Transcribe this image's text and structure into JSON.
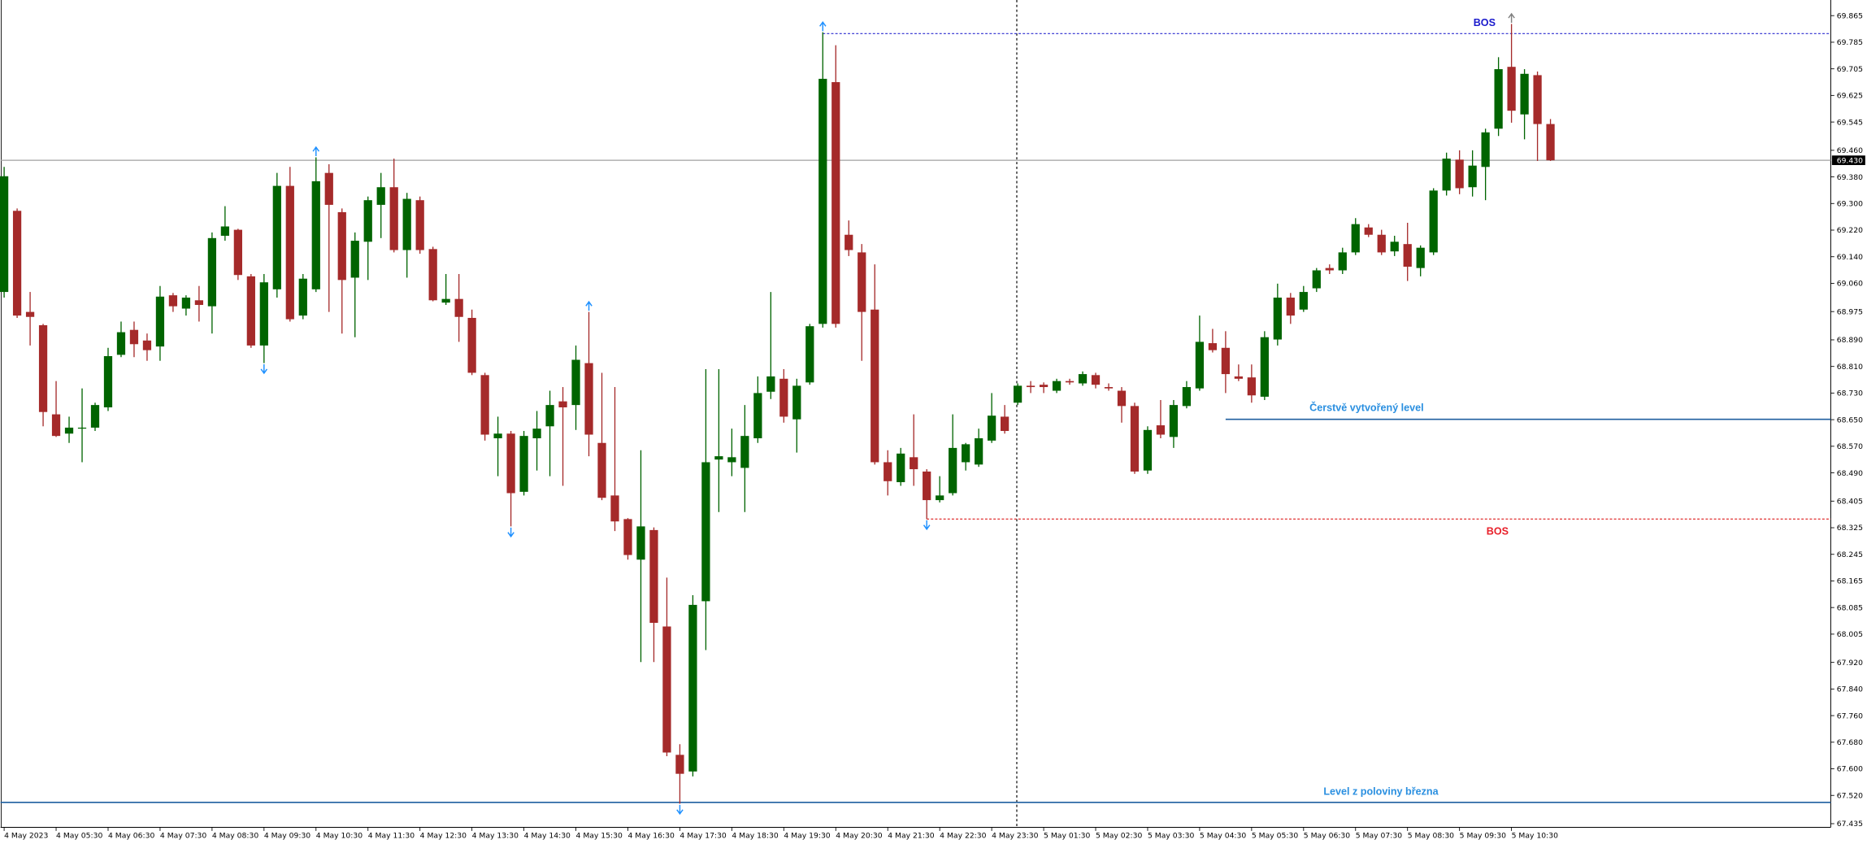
{
  "chart_data": {
    "type": "candlestick",
    "categories": [
      "4 May 2023",
      null,
      null,
      null,
      "4 May 05:30",
      null,
      null,
      null,
      "4 May 06:30",
      null,
      null,
      null,
      "4 May 07:30",
      null,
      null,
      null,
      "4 May 08:30",
      null,
      null,
      null,
      "4 May 09:30",
      null,
      null,
      null,
      "4 May 10:30",
      null,
      null,
      null,
      "4 May 11:30",
      null,
      null,
      null,
      "4 May 12:30",
      null,
      null,
      null,
      "4 May 13:30",
      null,
      null,
      null,
      "4 May 14:30",
      null,
      null,
      null,
      "4 May 15:30",
      null,
      null,
      null,
      "4 May 16:30",
      null,
      null,
      null,
      "4 May 17:30",
      null,
      null,
      null,
      "4 May 18:30",
      null,
      null,
      null,
      "4 May 19:30",
      null,
      null,
      null,
      "4 May 20:30",
      null,
      null,
      null,
      "4 May 21:30",
      null,
      null,
      null,
      "4 May 22:30",
      null,
      null,
      null,
      "4 May 23:30",
      null,
      null,
      null,
      "5 May 01:30",
      null,
      null,
      null,
      "5 May 02:30",
      null,
      null,
      null,
      "5 May 03:30",
      null,
      null,
      null,
      "5 May 04:30",
      null,
      null,
      null,
      "5 May 05:30",
      null,
      null,
      null,
      "5 May 06:30",
      null,
      null,
      null,
      "5 May 07:30",
      null,
      null,
      null,
      "5 May 08:30",
      null,
      null,
      null,
      "5 May 09:30",
      null,
      null,
      null,
      "5 May 10:30",
      null,
      null,
      null
    ],
    "open": [
      69.034,
      69.278,
      68.974,
      68.934,
      68.666,
      68.608,
      68.623,
      68.626,
      68.687,
      68.845,
      68.92,
      68.888,
      68.87,
      69.024,
      68.984,
      69.009,
      68.991,
      69.203,
      69.221,
      69.081,
      68.873,
      69.042,
      69.353,
      68.963,
      69.042,
      69.392,
      69.274,
      69.077,
      69.185,
      69.296,
      69.349,
      69.16,
      69.31,
      69.163,
      69.002,
      69.013,
      68.956,
      68.784,
      68.594,
      68.608,
      68.433,
      68.594,
      68.63,
      68.705,
      68.694,
      68.82,
      68.58,
      68.422,
      68.351,
      68.229,
      68.318,
      68.028,
      67.642,
      67.592,
      68.104,
      68.53,
      68.522,
      68.505,
      68.594,
      68.734,
      68.773,
      68.651,
      68.762,
      68.938,
      69.665,
      69.206,
      69.153,
      68.981,
      68.522,
      68.462,
      68.537,
      68.494,
      68.408,
      68.429,
      68.522,
      68.515,
      68.587,
      68.659,
      68.701,
      68.752,
      68.755,
      68.737,
      68.766,
      68.759,
      68.784,
      68.748,
      68.737,
      68.691,
      68.497,
      68.633,
      68.598,
      68.691,
      68.744,
      68.88,
      68.866,
      68.78,
      68.777,
      68.719,
      68.891,
      69.017,
      68.981,
      69.045,
      69.106,
      69.099,
      69.153,
      69.228,
      69.206,
      69.156,
      69.178,
      69.106,
      69.153,
      69.339,
      69.432,
      69.349,
      69.41,
      69.525,
      69.711,
      69.568,
      69.686,
      69.539
    ],
    "high": [
      69.41,
      69.285,
      69.034,
      68.938,
      68.766,
      68.659,
      68.744,
      68.701,
      68.866,
      68.945,
      68.945,
      68.909,
      69.052,
      69.031,
      69.024,
      69.052,
      69.213,
      69.292,
      69.224,
      69.088,
      69.088,
      69.392,
      69.41,
      69.088,
      69.439,
      69.418,
      69.285,
      69.213,
      69.321,
      69.392,
      69.435,
      69.332,
      69.321,
      69.17,
      69.088,
      69.088,
      68.981,
      68.791,
      68.659,
      68.616,
      68.616,
      68.676,
      68.737,
      68.748,
      68.873,
      68.974,
      68.791,
      68.748,
      68.354,
      68.558,
      68.326,
      68.175,
      67.674,
      68.122,
      68.802,
      68.802,
      68.623,
      68.694,
      68.78,
      69.034,
      68.802,
      68.773,
      68.938,
      69.815,
      69.776,
      69.249,
      69.178,
      69.117,
      68.558,
      68.565,
      68.666,
      68.501,
      68.48,
      68.666,
      68.58,
      68.623,
      68.73,
      68.694,
      68.759,
      68.766,
      68.762,
      68.773,
      68.773,
      68.795,
      68.791,
      68.759,
      68.748,
      68.701,
      68.63,
      68.709,
      68.709,
      68.766,
      68.963,
      68.923,
      68.916,
      68.816,
      68.816,
      68.916,
      69.059,
      69.031,
      69.052,
      69.106,
      69.117,
      69.167,
      69.256,
      69.238,
      69.221,
      69.203,
      69.242,
      69.174,
      69.346,
      69.453,
      69.46,
      69.46,
      69.525,
      69.74,
      69.84,
      69.704,
      69.697,
      69.554
    ],
    "low": [
      69.017,
      68.956,
      68.873,
      68.63,
      68.598,
      68.58,
      68.522,
      68.616,
      68.676,
      68.838,
      68.838,
      68.827,
      68.827,
      68.974,
      68.963,
      68.945,
      68.909,
      69.188,
      69.07,
      68.866,
      68.82,
      69.017,
      68.945,
      68.952,
      69.034,
      68.974,
      68.909,
      68.898,
      69.07,
      69.196,
      69.153,
      69.077,
      69.149,
      69.006,
      68.995,
      68.884,
      68.784,
      68.587,
      68.48,
      68.329,
      68.422,
      68.497,
      68.48,
      68.451,
      68.619,
      68.54,
      68.408,
      68.315,
      68.229,
      67.921,
      67.921,
      67.638,
      67.495,
      67.577,
      67.957,
      68.372,
      68.48,
      68.372,
      68.58,
      68.712,
      68.641,
      68.551,
      68.755,
      68.927,
      68.927,
      69.142,
      68.827,
      68.515,
      68.422,
      68.451,
      68.451,
      68.351,
      68.401,
      68.422,
      68.497,
      68.508,
      68.58,
      68.608,
      68.694,
      68.73,
      68.73,
      68.73,
      68.755,
      68.752,
      68.744,
      68.737,
      68.641,
      68.487,
      68.487,
      68.594,
      68.565,
      68.684,
      68.737,
      68.852,
      68.73,
      68.766,
      68.701,
      68.709,
      68.873,
      68.938,
      68.974,
      69.034,
      69.088,
      69.088,
      69.145,
      69.199,
      69.145,
      69.142,
      69.067,
      69.081,
      69.145,
      69.324,
      69.328,
      69.321,
      69.31,
      69.503,
      69.543,
      69.493,
      69.428,
      69.428
    ],
    "close": [
      69.382,
      68.963,
      68.959,
      68.673,
      68.601,
      68.626,
      68.626,
      68.694,
      68.841,
      68.913,
      68.877,
      68.859,
      69.02,
      68.991,
      69.017,
      68.995,
      69.196,
      69.231,
      69.085,
      68.873,
      69.063,
      69.353,
      68.952,
      69.074,
      69.367,
      69.296,
      69.07,
      69.188,
      69.31,
      69.349,
      69.16,
      69.314,
      69.16,
      69.009,
      69.013,
      68.959,
      68.791,
      68.605,
      68.608,
      68.429,
      68.601,
      68.623,
      68.694,
      68.687,
      68.83,
      68.605,
      68.415,
      68.344,
      68.243,
      68.329,
      68.039,
      67.649,
      67.585,
      68.093,
      68.522,
      68.54,
      68.537,
      68.601,
      68.73,
      68.78,
      68.659,
      68.752,
      68.931,
      69.675,
      68.938,
      69.16,
      68.974,
      68.522,
      68.465,
      68.548,
      68.501,
      68.408,
      68.422,
      68.565,
      68.576,
      68.594,
      68.662,
      68.616,
      68.752,
      68.748,
      68.748,
      68.766,
      68.762,
      68.787,
      68.755,
      68.744,
      68.691,
      68.494,
      68.619,
      68.605,
      68.694,
      68.748,
      68.884,
      68.859,
      68.787,
      68.773,
      68.723,
      68.898,
      69.017,
      68.963,
      69.034,
      69.099,
      69.099,
      69.153,
      69.238,
      69.206,
      69.153,
      69.185,
      69.11,
      69.167,
      69.339,
      69.435,
      69.346,
      69.414,
      69.514,
      69.704,
      69.579,
      69.69,
      69.539,
      69.43
    ],
    "up_color": "#006400",
    "down_color": "#a52a2a",
    "ylim": [
      67.424,
      69.912
    ],
    "yticks": [
      69.865,
      69.785,
      69.705,
      69.625,
      69.545,
      {
        "value": 69.46,
        "label": "69.460"
      },
      {
        "value": 69.38,
        "label": "69.380"
      },
      {
        "value": 69.3,
        "label": "69.300"
      },
      {
        "value": 69.22,
        "label": "69.220"
      },
      {
        "value": 69.14,
        "label": "69.140"
      },
      {
        "value": 69.06,
        "label": "69.060"
      },
      68.975,
      {
        "value": 68.89,
        "label": "68.890"
      },
      {
        "value": 68.81,
        "label": "68.810"
      },
      {
        "value": 68.73,
        "label": "68.730"
      },
      {
        "value": 68.65,
        "label": "68.650"
      },
      {
        "value": 68.57,
        "label": "68.570"
      },
      {
        "value": 68.49,
        "label": "68.490"
      },
      68.405,
      68.325,
      68.245,
      68.165,
      68.085,
      68.005,
      {
        "value": 67.92,
        "label": "67.920"
      },
      {
        "value": 67.84,
        "label": "67.840"
      },
      {
        "value": 67.76,
        "label": "67.760"
      },
      {
        "value": 67.68,
        "label": "67.680"
      },
      {
        "value": 67.6,
        "label": "67.600"
      },
      {
        "value": 67.52,
        "label": "67.520"
      },
      67.435
    ],
    "last_price": {
      "value": 69.43,
      "label": "69.430"
    },
    "levels": [
      {
        "value": 69.811,
        "from": 63,
        "color": "#2a2ad0",
        "dash": true,
        "label": "BOS",
        "label_color": "#1a1acc"
      },
      {
        "value": 68.351,
        "from": 71,
        "color": "#e03030",
        "dash": true,
        "label": "BOS",
        "label_color": "#e8202a"
      },
      {
        "value": 68.651,
        "from": 94,
        "color": "#1f5f9f",
        "dash": false,
        "label": "Čerstvě vytvořený level",
        "label_color": "#2a8fe0"
      },
      {
        "value": 67.499,
        "from": 0,
        "color": "#1f5f9f",
        "dash": false,
        "label": "Level z poloviny března",
        "label_color": "#2a8fe0"
      }
    ],
    "markers": [
      {
        "candle": 24,
        "dir": "up",
        "color": "#1e90ff"
      },
      {
        "candle": 45,
        "dir": "up",
        "color": "#1e90ff"
      },
      {
        "candle": 63,
        "dir": "up",
        "color": "#1e90ff"
      },
      {
        "candle": 116,
        "dir": "up",
        "color": "#808080"
      },
      {
        "candle": 20,
        "dir": "down",
        "color": "#1e90ff"
      },
      {
        "candle": 39,
        "dir": "down",
        "color": "#1e90ff"
      },
      {
        "candle": 52,
        "dir": "down",
        "color": "#1e90ff"
      },
      {
        "candle": 71,
        "dir": "down",
        "color": "#1e90ff"
      }
    ]
  }
}
